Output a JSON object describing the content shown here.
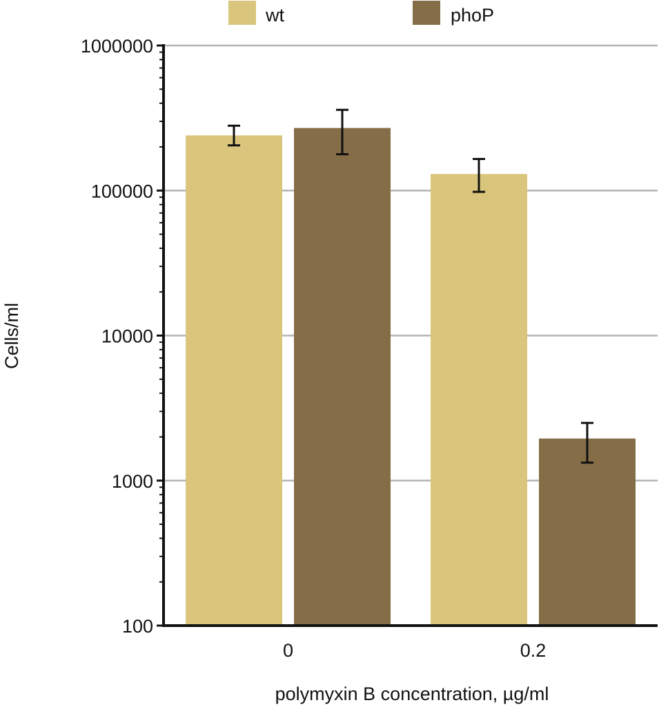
{
  "chart_data": {
    "type": "bar",
    "xlabel": "polymyxin B concentration, µg/ml",
    "ylabel": "Cells/ml",
    "yscale": "log",
    "ylim": [
      100,
      1000000
    ],
    "yticks": [
      "100",
      "1000",
      "10000",
      "100000",
      "1000000"
    ],
    "categories": [
      "0",
      "0.2"
    ],
    "grid": "horizontal major gridlines",
    "legend_position": "top",
    "series": [
      {
        "name": "wt",
        "color": "#d9c57c",
        "values": [
          240000,
          130000
        ],
        "error_low": [
          205000,
          98000
        ],
        "error_high": [
          280000,
          165000
        ]
      },
      {
        "name": "phoP",
        "color": "#856d48",
        "values": [
          270000,
          1950
        ],
        "error_low": [
          178000,
          1330
        ],
        "error_high": [
          360000,
          2500
        ]
      }
    ]
  }
}
